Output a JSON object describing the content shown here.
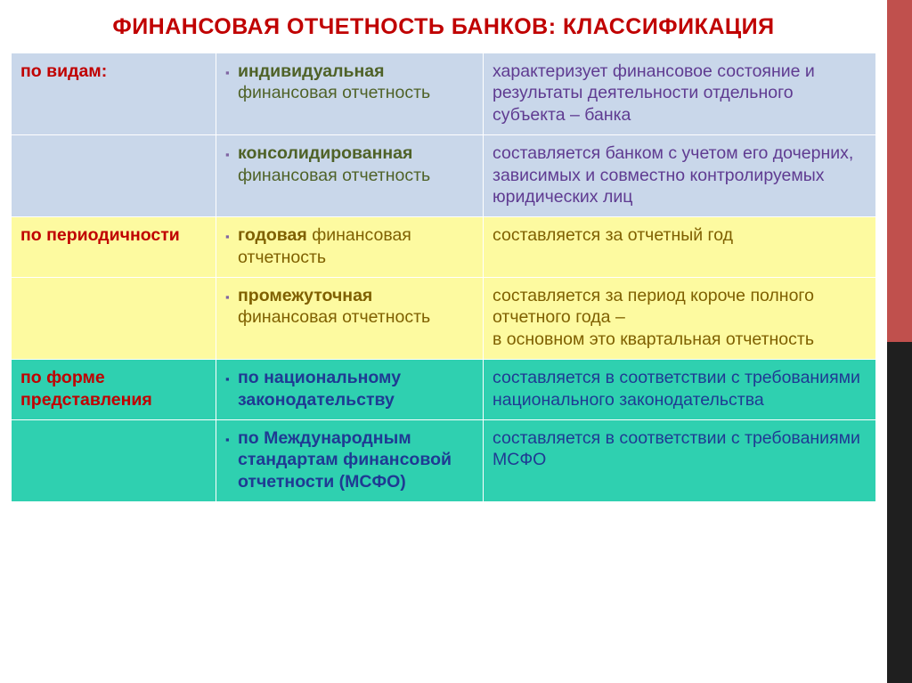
{
  "page": {
    "title": "ФИНАНСОВАЯ ОТЧЕТНОСТЬ БАНКОВ: КЛАССИФИКАЦИЯ",
    "title_color": "#c00000",
    "accent_stripe": {
      "top_color": "#c0504d",
      "bottom_color": "#1f1f1f"
    }
  },
  "groups": [
    {
      "label": "по видам:",
      "bg_color": "#c9d7ea",
      "label_color": "#c00000",
      "term_color": "#4f6228",
      "desc_color": "#5f3b91",
      "bullet_color": "#8064a2",
      "rows": [
        {
          "term": "индивидуальная",
          "term_rest": "финансовая отчетность",
          "desc": "характеризует финансовое состояние и результаты деятельности отдельного субъекта – банка"
        },
        {
          "term": "консолидированная",
          "term_rest": "финансовая отчетность",
          "desc": "составляется банком с учетом его дочерних, зависимых и совместно контролируемых юридических лиц"
        }
      ]
    },
    {
      "label": "по периодичности",
      "bg_color": "#fdfaa0",
      "label_color": "#c00000",
      "term_color": "#7f6000",
      "desc_color": "#7f6000",
      "bullet_color": "#8064a2",
      "rows": [
        {
          "term": "годовая",
          "term_rest": "финансовая отчетность",
          "desc": "составляется за отчетный год"
        },
        {
          "term": "промежуточная",
          "term_rest": "финансовая отчетность",
          "desc": "составляется за период короче полного отчетного года –\nв основном это квартальная отчетность"
        }
      ]
    },
    {
      "label": "по форме представления",
      "bg_color": "#2fd0b0",
      "label_color": "#c00000",
      "term_color": "#1f3a93",
      "desc_color": "#1f3a93",
      "bullet_color": "#1f3a93",
      "rows": [
        {
          "term": "по национальному законодательству",
          "term_rest": "",
          "desc": "составляется в соответствии с требованиями национального законодательства"
        },
        {
          "term": "по Международным стандартам финансовой отчетности (МСФО)",
          "term_rest": "",
          "desc": "составляется в соответствии с требованиями МСФО"
        }
      ]
    }
  ]
}
